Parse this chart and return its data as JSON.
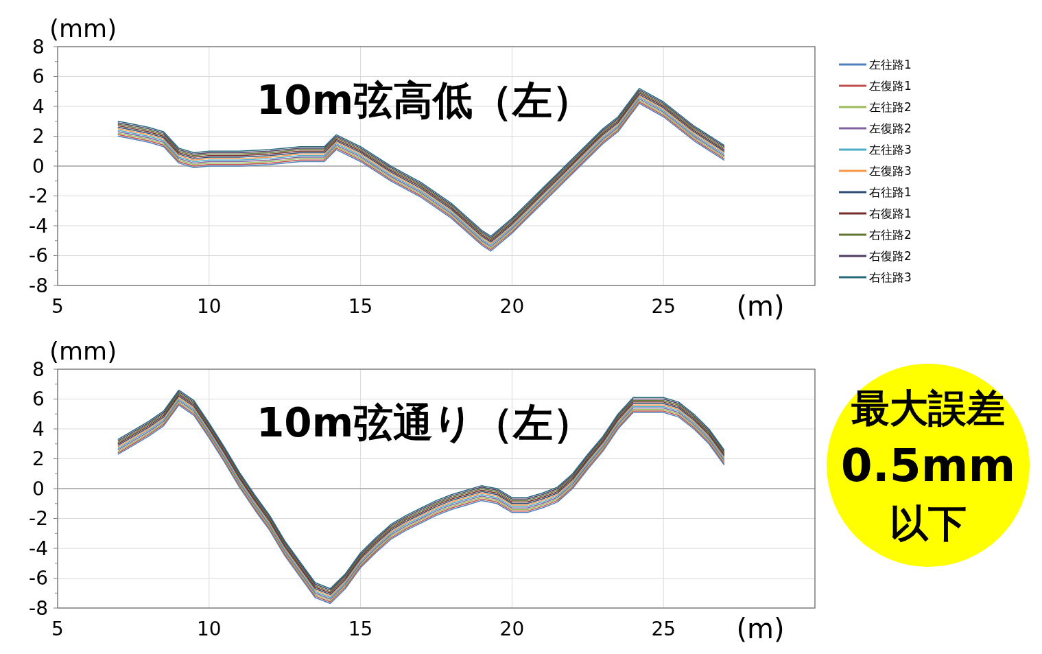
{
  "chart_data": [
    {
      "type": "line",
      "title": "10m弦高低（左）",
      "ylabel": "(mm)",
      "xlabel": "(m)",
      "xlim": [
        5,
        30
      ],
      "xticks": [
        5,
        10,
        15,
        20,
        25,
        {
          "value": 30,
          "label": null
        }
      ],
      "ylim": [
        -8,
        8
      ],
      "yticks": [
        -8,
        -6,
        -4,
        -2,
        0,
        2,
        4,
        6,
        8
      ],
      "grid": true,
      "legend": "right",
      "marker": "none",
      "line_style": "solid",
      "x": [
        7,
        7.5,
        8,
        8.5,
        9,
        9.5,
        10,
        11,
        12,
        13,
        13.8,
        14.2,
        15,
        16,
        17,
        18,
        19,
        19.3,
        20,
        21,
        22,
        23,
        23.5,
        24.2,
        25,
        26,
        27
      ],
      "series": [
        {
          "name": "左往路1",
          "color": "#4f81bd",
          "values": [
            2.0,
            1.8,
            1.6,
            1.3,
            0.2,
            -0.1,
            0.0,
            0.0,
            0.1,
            0.3,
            0.3,
            1.1,
            0.3,
            -1.0,
            -2.1,
            -3.5,
            -5.3,
            -5.7,
            -4.5,
            -2.5,
            -0.5,
            1.5,
            2.3,
            4.2,
            3.3,
            1.7,
            0.4
          ]
        },
        {
          "name": "左復路1",
          "color": "#c0504d",
          "values": [
            2.1,
            1.9,
            1.7,
            1.4,
            0.3,
            0.0,
            0.1,
            0.1,
            0.2,
            0.4,
            0.4,
            1.2,
            0.4,
            -0.9,
            -2.0,
            -3.4,
            -5.2,
            -5.6,
            -4.4,
            -2.4,
            -0.4,
            1.6,
            2.4,
            4.3,
            3.4,
            1.8,
            0.5
          ]
        },
        {
          "name": "左往路2",
          "color": "#9bbb59",
          "values": [
            2.2,
            2.0,
            1.8,
            1.5,
            0.4,
            0.1,
            0.2,
            0.2,
            0.3,
            0.5,
            0.5,
            1.3,
            0.5,
            -0.8,
            -1.9,
            -3.3,
            -5.1,
            -5.5,
            -4.3,
            -2.3,
            -0.3,
            1.7,
            2.5,
            4.4,
            3.5,
            1.9,
            0.6
          ]
        },
        {
          "name": "左復路2",
          "color": "#8064a2",
          "values": [
            2.3,
            2.1,
            1.9,
            1.6,
            0.5,
            0.2,
            0.3,
            0.3,
            0.4,
            0.6,
            0.6,
            1.4,
            0.6,
            -0.7,
            -1.8,
            -3.2,
            -5.0,
            -5.4,
            -4.2,
            -2.2,
            -0.2,
            1.8,
            2.6,
            4.5,
            3.6,
            2.0,
            0.7
          ]
        },
        {
          "name": "左往路3",
          "color": "#4bacc6",
          "values": [
            2.4,
            2.2,
            2.0,
            1.7,
            0.6,
            0.3,
            0.4,
            0.4,
            0.5,
            0.7,
            0.7,
            1.5,
            0.7,
            -0.6,
            -1.7,
            -3.1,
            -4.9,
            -5.3,
            -4.1,
            -2.1,
            -0.1,
            1.9,
            2.7,
            4.6,
            3.7,
            2.1,
            0.8
          ]
        },
        {
          "name": "左復路3",
          "color": "#f79646",
          "values": [
            2.5,
            2.3,
            2.1,
            1.8,
            0.7,
            0.4,
            0.5,
            0.5,
            0.6,
            0.8,
            0.8,
            1.6,
            0.8,
            -0.5,
            -1.6,
            -3.0,
            -4.8,
            -5.2,
            -4.0,
            -2.0,
            0.0,
            2.0,
            2.8,
            4.7,
            3.8,
            2.2,
            0.9
          ]
        },
        {
          "name": "右往路1",
          "color": "#2c4d75",
          "values": [
            2.6,
            2.4,
            2.2,
            1.9,
            0.8,
            0.5,
            0.6,
            0.6,
            0.7,
            0.9,
            0.9,
            1.7,
            0.9,
            -0.4,
            -1.5,
            -2.9,
            -4.7,
            -5.1,
            -3.9,
            -1.9,
            0.1,
            2.1,
            2.9,
            4.8,
            3.9,
            2.3,
            1.0
          ]
        },
        {
          "name": "右復路1",
          "color": "#772c2a",
          "values": [
            2.7,
            2.5,
            2.3,
            2.0,
            0.9,
            0.6,
            0.7,
            0.7,
            0.8,
            1.0,
            1.0,
            1.8,
            1.0,
            -0.3,
            -1.4,
            -2.8,
            -4.6,
            -5.0,
            -3.8,
            -1.8,
            0.2,
            2.2,
            3.0,
            4.9,
            4.0,
            2.4,
            1.1
          ]
        },
        {
          "name": "右往路2",
          "color": "#5f7530",
          "values": [
            2.8,
            2.6,
            2.4,
            2.1,
            1.0,
            0.7,
            0.8,
            0.8,
            0.9,
            1.1,
            1.1,
            1.9,
            1.1,
            -0.2,
            -1.3,
            -2.7,
            -4.5,
            -4.9,
            -3.7,
            -1.7,
            0.3,
            2.3,
            3.1,
            5.0,
            4.1,
            2.5,
            1.2
          ]
        },
        {
          "name": "右復路2",
          "color": "#4d3b62",
          "values": [
            2.9,
            2.7,
            2.5,
            2.2,
            1.1,
            0.8,
            0.9,
            0.9,
            1.0,
            1.2,
            1.2,
            2.0,
            1.2,
            -0.1,
            -1.2,
            -2.6,
            -4.4,
            -4.8,
            -3.6,
            -1.6,
            0.4,
            2.4,
            3.2,
            5.1,
            4.2,
            2.6,
            1.3
          ]
        },
        {
          "name": "右往路3",
          "color": "#276a7c",
          "values": [
            3.0,
            2.8,
            2.6,
            2.3,
            1.2,
            0.9,
            1.0,
            1.0,
            1.1,
            1.3,
            1.3,
            2.1,
            1.3,
            0.0,
            -1.1,
            -2.5,
            -4.3,
            -4.7,
            -3.5,
            -1.5,
            0.5,
            2.5,
            3.3,
            5.2,
            4.3,
            2.7,
            1.4
          ]
        }
      ]
    },
    {
      "type": "line",
      "title": "10m弦通り（左）",
      "ylabel": "(mm)",
      "xlabel": "(m)",
      "xlim": [
        5,
        30
      ],
      "xticks": [
        5,
        10,
        15,
        20,
        25,
        {
          "value": 30,
          "label": null
        }
      ],
      "ylim": [
        -8,
        8
      ],
      "yticks": [
        -8,
        -6,
        -4,
        -2,
        0,
        2,
        4,
        6,
        8
      ],
      "grid": true,
      "marker": "none",
      "line_style": "solid",
      "annotations": [
        "最大誤差",
        "0.5mm",
        "以下"
      ],
      "x": [
        7,
        7.5,
        8,
        8.5,
        9,
        9.5,
        10,
        10.5,
        11,
        11.5,
        12,
        12.5,
        13,
        13.5,
        14,
        14.5,
        15,
        15.5,
        16,
        16.5,
        17,
        17.5,
        18,
        18.5,
        19,
        19.5,
        20,
        20.5,
        21,
        21.5,
        22,
        22.5,
        23,
        23.5,
        24,
        24.5,
        25,
        25.5,
        26,
        26.5,
        27
      ],
      "series": [
        {
          "color": "#4f81bd",
          "values": [
            2.3,
            2.9,
            3.5,
            4.2,
            5.6,
            4.9,
            3.4,
            1.8,
            0.1,
            -1.4,
            -2.8,
            -4.5,
            -5.9,
            -7.3,
            -7.7,
            -6.7,
            -5.3,
            -4.3,
            -3.4,
            -2.8,
            -2.3,
            -1.8,
            -1.4,
            -1.1,
            -0.8,
            -1.0,
            -1.6,
            -1.6,
            -1.3,
            -0.9,
            0.0,
            1.3,
            2.5,
            4.0,
            5.1,
            5.1,
            5.1,
            4.8,
            4.0,
            3.0,
            1.6
          ]
        },
        {
          "color": "#c0504d",
          "values": [
            2.4,
            3.0,
            3.6,
            4.3,
            5.7,
            5.0,
            3.5,
            1.9,
            0.2,
            -1.3,
            -2.7,
            -4.4,
            -5.8,
            -7.2,
            -7.6,
            -6.6,
            -5.2,
            -4.2,
            -3.3,
            -2.7,
            -2.2,
            -1.7,
            -1.3,
            -1.0,
            -0.7,
            -0.9,
            -1.5,
            -1.5,
            -1.2,
            -0.8,
            0.1,
            1.4,
            2.6,
            4.1,
            5.2,
            5.2,
            5.2,
            4.9,
            4.1,
            3.1,
            1.7
          ]
        },
        {
          "color": "#9bbb59",
          "values": [
            2.5,
            3.1,
            3.7,
            4.4,
            5.8,
            5.1,
            3.6,
            2.0,
            0.3,
            -1.2,
            -2.6,
            -4.3,
            -5.7,
            -7.1,
            -7.5,
            -6.5,
            -5.1,
            -4.1,
            -3.2,
            -2.6,
            -2.1,
            -1.6,
            -1.2,
            -0.9,
            -0.6,
            -0.8,
            -1.4,
            -1.4,
            -1.1,
            -0.7,
            0.2,
            1.5,
            2.7,
            4.2,
            5.3,
            5.3,
            5.3,
            5.0,
            4.2,
            3.2,
            1.8
          ]
        },
        {
          "color": "#8064a2",
          "values": [
            2.6,
            3.2,
            3.8,
            4.5,
            5.9,
            5.2,
            3.7,
            2.1,
            0.4,
            -1.1,
            -2.5,
            -4.2,
            -5.6,
            -7.0,
            -7.4,
            -6.4,
            -5.0,
            -4.0,
            -3.1,
            -2.5,
            -2.0,
            -1.5,
            -1.1,
            -0.8,
            -0.5,
            -0.7,
            -1.3,
            -1.3,
            -1.0,
            -0.6,
            0.3,
            1.6,
            2.8,
            4.3,
            5.4,
            5.4,
            5.4,
            5.1,
            4.3,
            3.3,
            1.9
          ]
        },
        {
          "color": "#4bacc6",
          "values": [
            2.7,
            3.3,
            3.9,
            4.6,
            6.0,
            5.3,
            3.8,
            2.2,
            0.5,
            -1.0,
            -2.4,
            -4.1,
            -5.5,
            -6.9,
            -7.3,
            -6.3,
            -4.9,
            -3.9,
            -3.0,
            -2.4,
            -1.9,
            -1.4,
            -1.0,
            -0.7,
            -0.4,
            -0.6,
            -1.2,
            -1.2,
            -0.9,
            -0.5,
            0.4,
            1.7,
            2.9,
            4.4,
            5.5,
            5.5,
            5.5,
            5.2,
            4.4,
            3.4,
            2.0
          ]
        },
        {
          "color": "#f79646",
          "values": [
            2.8,
            3.4,
            4.0,
            4.7,
            6.1,
            5.4,
            3.9,
            2.3,
            0.6,
            -0.9,
            -2.3,
            -4.0,
            -5.4,
            -6.8,
            -7.2,
            -6.2,
            -4.8,
            -3.8,
            -2.9,
            -2.3,
            -1.8,
            -1.3,
            -0.9,
            -0.6,
            -0.3,
            -0.5,
            -1.1,
            -1.1,
            -0.8,
            -0.4,
            0.5,
            1.8,
            3.0,
            4.5,
            5.6,
            5.6,
            5.6,
            5.3,
            4.5,
            3.5,
            2.1
          ]
        },
        {
          "color": "#2c4d75",
          "values": [
            2.9,
            3.5,
            4.1,
            4.8,
            6.2,
            5.5,
            4.0,
            2.4,
            0.7,
            -0.8,
            -2.2,
            -3.9,
            -5.3,
            -6.7,
            -7.1,
            -6.1,
            -4.7,
            -3.7,
            -2.8,
            -2.2,
            -1.7,
            -1.2,
            -0.8,
            -0.5,
            -0.2,
            -0.4,
            -1.0,
            -1.0,
            -0.7,
            -0.3,
            0.6,
            1.9,
            3.1,
            4.6,
            5.7,
            5.7,
            5.7,
            5.4,
            4.6,
            3.6,
            2.2
          ]
        },
        {
          "color": "#772c2a",
          "values": [
            3.0,
            3.6,
            4.2,
            4.9,
            6.3,
            5.6,
            4.1,
            2.5,
            0.8,
            -0.7,
            -2.1,
            -3.8,
            -5.2,
            -6.6,
            -7.0,
            -6.0,
            -4.6,
            -3.6,
            -2.7,
            -2.1,
            -1.6,
            -1.1,
            -0.7,
            -0.4,
            -0.1,
            -0.3,
            -0.9,
            -0.9,
            -0.6,
            -0.2,
            0.7,
            2.0,
            3.2,
            4.7,
            5.8,
            5.8,
            5.8,
            5.5,
            4.7,
            3.7,
            2.3
          ]
        },
        {
          "color": "#5f7530",
          "values": [
            3.1,
            3.7,
            4.3,
            5.0,
            6.4,
            5.7,
            4.2,
            2.6,
            0.9,
            -0.6,
            -2.0,
            -3.7,
            -5.1,
            -6.5,
            -6.9,
            -5.9,
            -4.5,
            -3.5,
            -2.6,
            -2.0,
            -1.5,
            -1.0,
            -0.6,
            -0.3,
            0.0,
            -0.2,
            -0.8,
            -0.8,
            -0.5,
            -0.1,
            0.8,
            2.1,
            3.3,
            4.8,
            5.9,
            5.9,
            5.9,
            5.6,
            4.8,
            3.8,
            2.4
          ]
        },
        {
          "color": "#4d3b62",
          "values": [
            3.2,
            3.8,
            4.4,
            5.1,
            6.5,
            5.8,
            4.3,
            2.7,
            1.0,
            -0.5,
            -1.9,
            -3.6,
            -5.0,
            -6.4,
            -6.8,
            -5.8,
            -4.4,
            -3.4,
            -2.5,
            -1.9,
            -1.4,
            -0.9,
            -0.5,
            -0.2,
            0.1,
            -0.1,
            -0.7,
            -0.7,
            -0.4,
            0.0,
            0.9,
            2.2,
            3.4,
            4.9,
            6.0,
            6.0,
            6.0,
            5.7,
            4.9,
            3.9,
            2.5
          ]
        },
        {
          "color": "#276a7c",
          "values": [
            3.3,
            3.9,
            4.5,
            5.2,
            6.6,
            5.9,
            4.4,
            2.8,
            1.1,
            -0.4,
            -1.8,
            -3.5,
            -4.9,
            -6.3,
            -6.7,
            -5.7,
            -4.3,
            -3.3,
            -2.4,
            -1.8,
            -1.3,
            -0.8,
            -0.4,
            -0.1,
            0.2,
            0.0,
            -0.6,
            -0.6,
            -0.3,
            0.1,
            1.0,
            2.3,
            3.5,
            5.0,
            6.1,
            6.1,
            6.1,
            5.8,
            5.0,
            4.0,
            2.6
          ]
        }
      ]
    }
  ]
}
